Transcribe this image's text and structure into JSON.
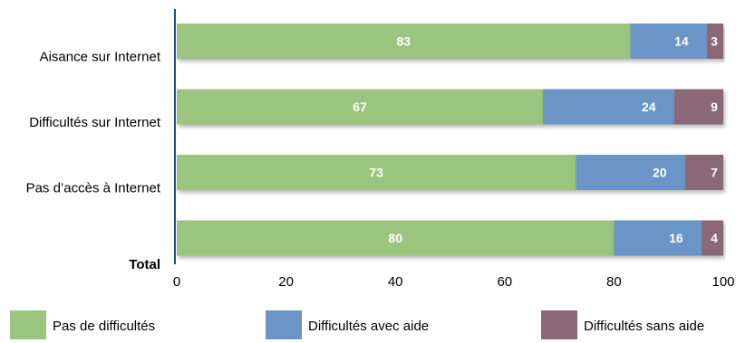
{
  "chart_data": {
    "type": "bar",
    "orientation": "horizontal",
    "stacked": true,
    "categories": [
      "Aisance sur Internet",
      "Difficultés sur Internet",
      "Pas d’accès à Internet",
      "Total"
    ],
    "series": [
      {
        "name": "Pas de difficultés",
        "values": [
          83,
          67,
          73,
          80
        ],
        "color": "#9bc47e"
      },
      {
        "name": "Difficultés avec aide",
        "values": [
          14,
          24,
          20,
          16
        ],
        "color": "#6a95c6"
      },
      {
        "name": "Difficultés sans aide",
        "values": [
          3,
          9,
          7,
          4
        ],
        "color": "#8a6877"
      }
    ],
    "xlim": [
      0,
      100
    ],
    "xticks": [
      "0",
      "20",
      "40",
      "60",
      "80",
      "100"
    ],
    "title": "",
    "xlabel": "",
    "ylabel": "",
    "legend_position": "bottom",
    "grid": false
  }
}
